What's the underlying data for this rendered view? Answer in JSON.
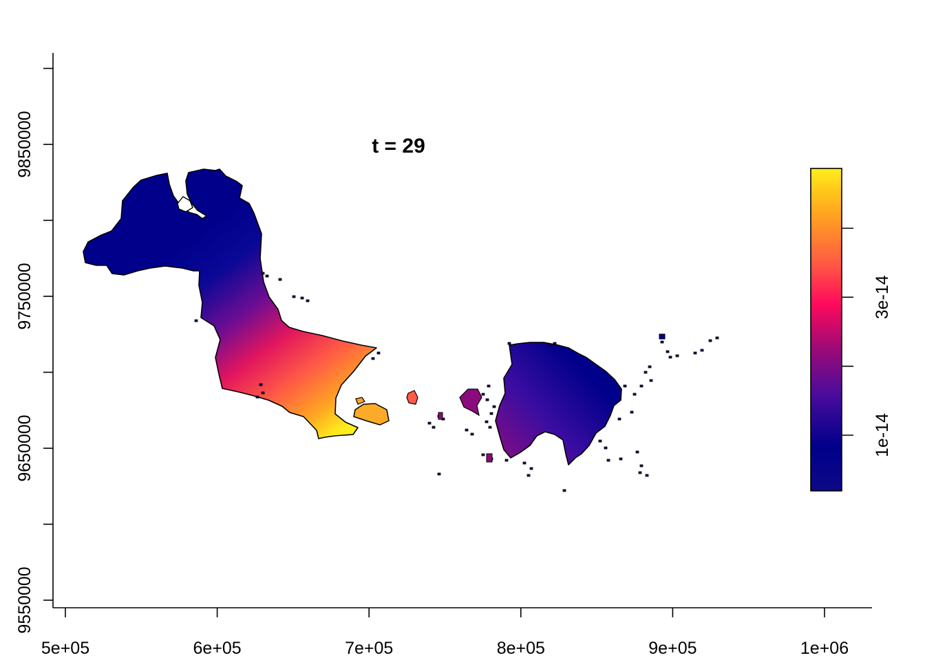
{
  "title": "t = 29",
  "x_axis": {
    "range": [
      500000,
      1030000
    ],
    "ticks": [
      500000,
      600000,
      700000,
      800000,
      900000,
      1000000
    ],
    "tick_labels": [
      "5e+05",
      "6e+05",
      "7e+05",
      "8e+05",
      "9e+05",
      "1e+06"
    ]
  },
  "y_axis": {
    "range": [
      9550000,
      9900000
    ],
    "ticks": [
      9550000,
      9600000,
      9650000,
      9700000,
      9750000,
      9800000,
      9850000,
      9900000
    ],
    "labeled_ticks": [
      9550000,
      9650000,
      9750000,
      9850000
    ],
    "tick_labels": [
      "9550000",
      "9650000",
      "9750000",
      "9850000"
    ]
  },
  "legend": {
    "type": "continuous colorbar",
    "placement": "right",
    "range": [
      4e-15,
      4.8e-14
    ],
    "ticks": [
      1e-14,
      2e-14,
      3e-14,
      4e-14
    ],
    "labeled_ticks": [
      1e-14,
      3e-14
    ],
    "tick_labels": [
      "1e-14",
      "3e-14"
    ],
    "palette": [
      "#0d0887",
      "#00008b",
      "#4b0c9c",
      "#8b0a7a",
      "#d6205d",
      "#ff0a5c",
      "#ff5745",
      "#ff9226",
      "#ffc21a",
      "#ffee1c"
    ]
  },
  "colors": {
    "outline": "#000000",
    "background": "#ffffff"
  }
}
